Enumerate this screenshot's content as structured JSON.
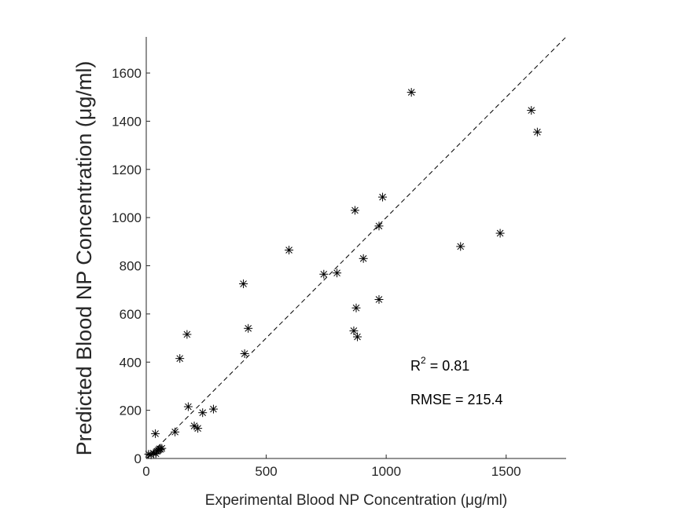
{
  "chart_data": {
    "type": "scatter",
    "xlabel": "Experimental Blood NP Concentration (μg/ml)",
    "ylabel": "Predicted Blood NP Concentration (μg/ml)",
    "xlim": [
      0,
      1750
    ],
    "ylim": [
      0,
      1750
    ],
    "x_ticks": [
      "0",
      "500",
      "1000",
      "1500"
    ],
    "y_ticks": [
      "0",
      "200",
      "400",
      "600",
      "800",
      "1000",
      "1200",
      "1400",
      "1600"
    ],
    "grid": false,
    "marker": "asterisk",
    "marker_color": "#000000",
    "reference_line": {
      "style": "dashed",
      "from": [
        0,
        0
      ],
      "to": [
        1750,
        1750
      ],
      "color": "#000000"
    },
    "annotations": {
      "r2_prefix": "R",
      "r2_exp": "2",
      "r2_value": " = 0.81",
      "rmse": "RMSE = 215.4"
    },
    "points": [
      [
        10,
        18
      ],
      [
        20,
        15
      ],
      [
        30,
        22
      ],
      [
        40,
        20
      ],
      [
        45,
        30
      ],
      [
        50,
        35
      ],
      [
        55,
        40
      ],
      [
        60,
        38
      ],
      [
        65,
        42
      ],
      [
        38,
        103
      ],
      [
        120,
        110
      ],
      [
        200,
        135
      ],
      [
        215,
        125
      ],
      [
        175,
        215
      ],
      [
        235,
        190
      ],
      [
        280,
        205
      ],
      [
        140,
        415
      ],
      [
        170,
        515
      ],
      [
        405,
        725
      ],
      [
        410,
        435
      ],
      [
        425,
        540
      ],
      [
        595,
        865
      ],
      [
        740,
        765
      ],
      [
        795,
        770
      ],
      [
        865,
        530
      ],
      [
        870,
        1030
      ],
      [
        875,
        625
      ],
      [
        880,
        505
      ],
      [
        905,
        830
      ],
      [
        970,
        965
      ],
      [
        970,
        660
      ],
      [
        985,
        1085
      ],
      [
        1105,
        1520
      ],
      [
        1310,
        880
      ],
      [
        1475,
        935
      ],
      [
        1605,
        1445
      ],
      [
        1630,
        1355
      ]
    ]
  }
}
